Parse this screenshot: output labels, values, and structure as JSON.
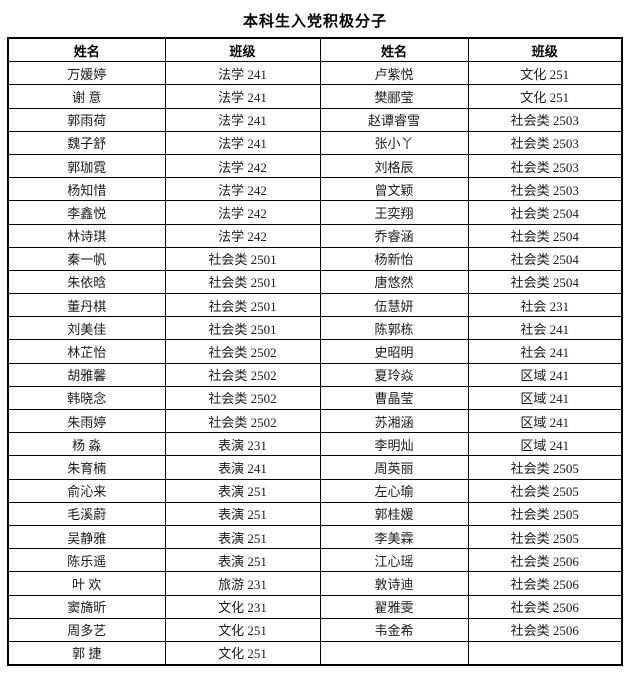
{
  "page": {
    "title": "本科生入党积极分子"
  },
  "table": {
    "headers": [
      "姓名",
      "班级",
      "姓名",
      "班级"
    ],
    "rows": [
      [
        "万媛婷",
        "法学 241",
        "卢紫悦",
        "文化 251"
      ],
      [
        "谢 意",
        "法学 241",
        "樊郦莹",
        "文化 251"
      ],
      [
        "郭雨荷",
        "法学 241",
        "赵谭睿雪",
        "社会类 2503"
      ],
      [
        "魏子舒",
        "法学 241",
        "张小丫",
        "社会类 2503"
      ],
      [
        "郭珈霓",
        "法学 242",
        "刘格辰",
        "社会类 2503"
      ],
      [
        "杨知惜",
        "法学 242",
        "曾文颖",
        "社会类 2503"
      ],
      [
        "李鑫悦",
        "法学 242",
        "王奕翔",
        "社会类 2504"
      ],
      [
        "林诗琪",
        "法学 242",
        "乔睿涵",
        "社会类 2504"
      ],
      [
        "秦一帆",
        "社会类 2501",
        "杨新怡",
        "社会类 2504"
      ],
      [
        "朱依晗",
        "社会类 2501",
        "唐悠然",
        "社会类 2504"
      ],
      [
        "董丹棋",
        "社会类 2501",
        "伍慧妍",
        "社会 231"
      ],
      [
        "刘美佳",
        "社会类 2501",
        "陈郭栋",
        "社会 241"
      ],
      [
        "林芷怡",
        "社会类 2502",
        "史昭明",
        "社会 241"
      ],
      [
        "胡雅馨",
        "社会类 2502",
        "夏玲焱",
        "区域 241"
      ],
      [
        "韩晓念",
        "社会类 2502",
        "曹晶莹",
        "区域 241"
      ],
      [
        "朱雨婷",
        "社会类 2502",
        "苏湘涵",
        "区域 241"
      ],
      [
        "杨 淼",
        "表演 231",
        "李明灿",
        "区域 241"
      ],
      [
        "朱育楠",
        "表演 241",
        "周英丽",
        "社会类 2505"
      ],
      [
        "俞沁来",
        "表演 251",
        "左心瑜",
        "社会类 2505"
      ],
      [
        "毛溪蔚",
        "表演 251",
        "郭桂媛",
        "社会类 2505"
      ],
      [
        "吴静雅",
        "表演 251",
        "李美霖",
        "社会类 2505"
      ],
      [
        "陈乐遥",
        "表演 251",
        "江心瑶",
        "社会类 2506"
      ],
      [
        "叶 欢",
        "旅游 231",
        "敦诗迪",
        "社会类 2506"
      ],
      [
        "窦旖昕",
        "文化 231",
        "翟雅雯",
        "社会类 2506"
      ],
      [
        "周多艺",
        "文化 251",
        "韦金希",
        "社会类 2506"
      ],
      [
        "郭 捷",
        "文化 251",
        "",
        ""
      ]
    ]
  }
}
